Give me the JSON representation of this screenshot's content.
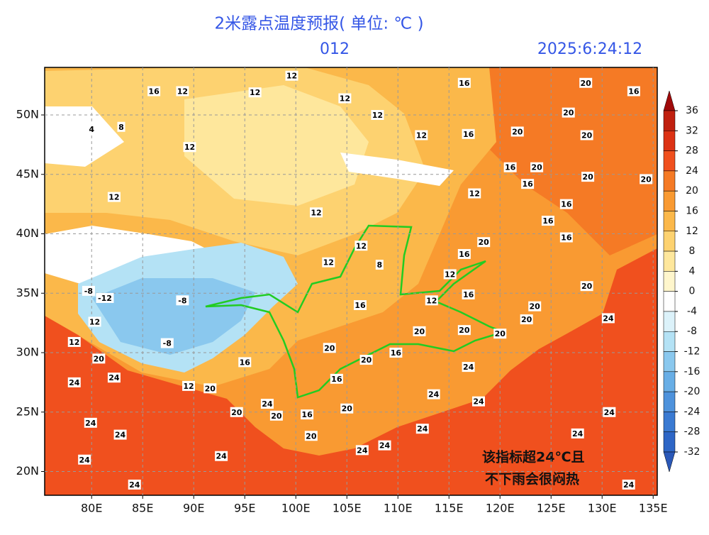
{
  "header": {
    "title": "2米露点温度预报( 单位: ℃ )",
    "forecast_hour": "012",
    "time": "2025:6:24:12"
  },
  "map": {
    "xlim": [
      75.4,
      135.4
    ],
    "ylim": [
      18,
      54
    ],
    "grid": true,
    "xticks": [
      {
        "value": 80,
        "label": "80E"
      },
      {
        "value": 85,
        "label": "85E"
      },
      {
        "value": 90,
        "label": "90E"
      },
      {
        "value": 95,
        "label": "95E"
      },
      {
        "value": 100,
        "label": "100E"
      },
      {
        "value": 105,
        "label": "105E"
      },
      {
        "value": 110,
        "label": "110E"
      },
      {
        "value": 115,
        "label": "115E"
      },
      {
        "value": 120,
        "label": "120E"
      },
      {
        "value": 125,
        "label": "125E"
      },
      {
        "value": 130,
        "label": "130E"
      },
      {
        "value": 135,
        "label": "135E"
      }
    ],
    "yticks": [
      {
        "value": 20,
        "label": "20N"
      },
      {
        "value": 25,
        "label": "25N"
      },
      {
        "value": 30,
        "label": "30N"
      },
      {
        "value": 35,
        "label": "35N"
      },
      {
        "value": 40,
        "label": "40N"
      },
      {
        "value": 45,
        "label": "45N"
      },
      {
        "value": 50,
        "label": "50N"
      }
    ],
    "contour_labels": [
      {
        "value": 24,
        "lon": 78.3,
        "lat": 27.5
      },
      {
        "value": 24,
        "lon": 79.9,
        "lat": 24.1
      },
      {
        "value": 24,
        "lon": 82.8,
        "lat": 23.1
      },
      {
        "value": 24,
        "lon": 79.3,
        "lat": 21.0
      },
      {
        "value": 24,
        "lon": 84.2,
        "lat": 18.9
      },
      {
        "value": 24,
        "lon": 82.2,
        "lat": 27.9
      },
      {
        "value": 24,
        "lon": 92.7,
        "lat": 21.3
      },
      {
        "value": 24,
        "lon": 97.2,
        "lat": 25.7
      },
      {
        "value": 20,
        "lon": 80.7,
        "lat": 29.5
      },
      {
        "value": 20,
        "lon": 91.6,
        "lat": 27.0
      },
      {
        "value": 20,
        "lon": 94.2,
        "lat": 25.0
      },
      {
        "value": 20,
        "lon": 98.1,
        "lat": 24.7
      },
      {
        "value": 20,
        "lon": 101.5,
        "lat": 23.0
      },
      {
        "value": 20,
        "lon": 105.0,
        "lat": 25.3
      },
      {
        "value": 16,
        "lon": 101.1,
        "lat": 24.8
      },
      {
        "value": 16,
        "lon": 104.0,
        "lat": 27.8
      },
      {
        "value": 16,
        "lon": 109.8,
        "lat": 30.0
      },
      {
        "value": 20,
        "lon": 106.9,
        "lat": 29.4
      },
      {
        "value": 20,
        "lon": 112.1,
        "lat": 31.8
      },
      {
        "value": 20,
        "lon": 116.5,
        "lat": 31.9
      },
      {
        "value": 20,
        "lon": 120.0,
        "lat": 31.6
      },
      {
        "value": 24,
        "lon": 116.9,
        "lat": 28.8
      },
      {
        "value": 24,
        "lon": 113.5,
        "lat": 26.5
      },
      {
        "value": 24,
        "lon": 117.9,
        "lat": 25.9
      },
      {
        "value": 24,
        "lon": 112.4,
        "lat": 23.6
      },
      {
        "value": 24,
        "lon": 108.7,
        "lat": 22.2
      },
      {
        "value": 24,
        "lon": 106.5,
        "lat": 21.8
      },
      {
        "value": 24,
        "lon": 127.6,
        "lat": 23.2
      },
      {
        "value": 24,
        "lon": 130.7,
        "lat": 25.0
      },
      {
        "value": 24,
        "lon": 130.6,
        "lat": 32.9
      },
      {
        "value": 24,
        "lon": 132.6,
        "lat": 18.9
      },
      {
        "value": 20,
        "lon": 122.6,
        "lat": 32.8
      },
      {
        "value": 20,
        "lon": 128.5,
        "lat": 35.6
      },
      {
        "value": 20,
        "lon": 123.4,
        "lat": 33.9
      },
      {
        "value": 16,
        "lon": 116.9,
        "lat": 34.9
      },
      {
        "value": 12,
        "lon": 113.3,
        "lat": 34.4
      },
      {
        "value": 12,
        "lon": 115.1,
        "lat": 36.6
      },
      {
        "value": 16,
        "lon": 116.5,
        "lat": 38.3
      },
      {
        "value": 20,
        "lon": 118.4,
        "lat": 39.3
      },
      {
        "value": 16,
        "lon": 124.7,
        "lat": 41.1
      },
      {
        "value": 16,
        "lon": 126.5,
        "lat": 39.7
      },
      {
        "value": 16,
        "lon": 126.5,
        "lat": 42.5
      },
      {
        "value": 16,
        "lon": 122.7,
        "lat": 44.2
      },
      {
        "value": 20,
        "lon": 123.6,
        "lat": 45.6
      },
      {
        "value": 16,
        "lon": 121.0,
        "lat": 45.6
      },
      {
        "value": 20,
        "lon": 128.6,
        "lat": 44.8
      },
      {
        "value": 20,
        "lon": 134.3,
        "lat": 44.6
      },
      {
        "value": 20,
        "lon": 121.7,
        "lat": 48.6
      },
      {
        "value": 20,
        "lon": 128.5,
        "lat": 48.3
      },
      {
        "value": 20,
        "lon": 126.7,
        "lat": 50.2
      },
      {
        "value": 20,
        "lon": 128.4,
        "lat": 52.7
      },
      {
        "value": 16,
        "lon": 133.1,
        "lat": 52.0
      },
      {
        "value": 16,
        "lon": 116.5,
        "lat": 52.7
      },
      {
        "value": 16,
        "lon": 116.9,
        "lat": 48.4
      },
      {
        "value": 12,
        "lon": 112.3,
        "lat": 48.3
      },
      {
        "value": 12,
        "lon": 117.5,
        "lat": 43.4
      },
      {
        "value": 12,
        "lon": 102.0,
        "lat": 41.8
      },
      {
        "value": 12,
        "lon": 106.4,
        "lat": 39.0
      },
      {
        "value": 12,
        "lon": 103.2,
        "lat": 37.6
      },
      {
        "value": 8,
        "lon": 108.2,
        "lat": 37.4
      },
      {
        "value": 16,
        "lon": 106.3,
        "lat": 34.0
      },
      {
        "value": 12,
        "lon": 99.6,
        "lat": 53.3
      },
      {
        "value": 12,
        "lon": 104.8,
        "lat": 51.4
      },
      {
        "value": 12,
        "lon": 108.0,
        "lat": 50.0
      },
      {
        "value": 16,
        "lon": 86.1,
        "lat": 52.0
      },
      {
        "value": 12,
        "lon": 88.9,
        "lat": 52.0
      },
      {
        "value": 12,
        "lon": 96.0,
        "lat": 51.9
      },
      {
        "value": 12,
        "lon": 89.6,
        "lat": 47.3
      },
      {
        "value": 12,
        "lon": 82.2,
        "lat": 43.1
      },
      {
        "value": 8,
        "lon": 82.9,
        "lat": 49.0
      },
      {
        "value": 4,
        "lon": 80.0,
        "lat": 48.8
      },
      {
        "value": -8,
        "lon": 79.7,
        "lat": 35.2
      },
      {
        "value": -12,
        "lon": 81.3,
        "lat": 34.6
      },
      {
        "value": -8,
        "lon": 88.9,
        "lat": 34.4
      },
      {
        "value": 12,
        "lon": 80.3,
        "lat": 32.6
      },
      {
        "value": 12,
        "lon": 78.3,
        "lat": 30.9
      },
      {
        "value": -8,
        "lon": 87.4,
        "lat": 30.8
      },
      {
        "value": 12,
        "lon": 89.5,
        "lat": 27.2
      },
      {
        "value": 16,
        "lon": 95.0,
        "lat": 29.2
      },
      {
        "value": 20,
        "lon": 103.3,
        "lat": 30.4
      }
    ]
  },
  "colorbar": {
    "ticks": [
      36,
      32,
      28,
      24,
      20,
      16,
      12,
      8,
      4,
      0,
      -4,
      -8,
      -12,
      -16,
      -20,
      -24,
      -28,
      -32
    ],
    "colors": [
      "#a00a0a",
      "#c0200f",
      "#dc3214",
      "#f0501e",
      "#f57a25",
      "#f99a32",
      "#fbb84a",
      "#fdd270",
      "#fee79c",
      "#fff6cc",
      "#ffffff",
      "#dcf2fa",
      "#b4e2f5",
      "#8ac8ee",
      "#68aee6",
      "#4e92dc",
      "#3a7ad2",
      "#2e66c6",
      "#2a58b8"
    ]
  },
  "annotation": {
    "lines": [
      "该指标超24℃且",
      "不下雨会很闷热"
    ]
  }
}
